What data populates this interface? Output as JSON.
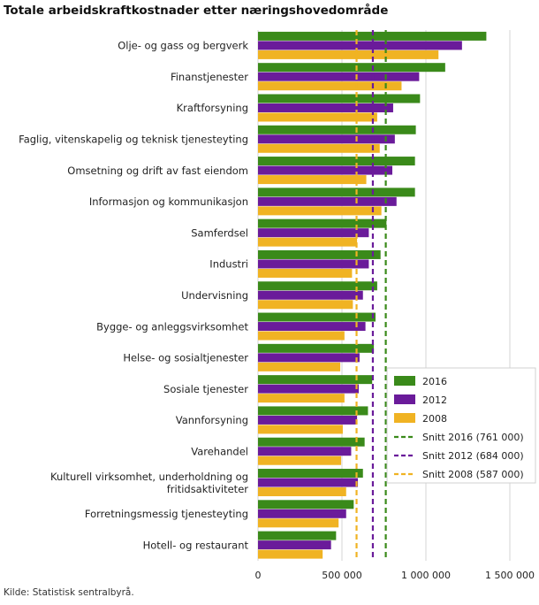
{
  "chart_data": {
    "type": "bar",
    "orientation": "horizontal",
    "title": "Totale arbeidskraftkostnader etter næringshovedområde",
    "source": "Kilde: Statistisk sentralbyrå.",
    "categories": [
      [
        "Olje- og gass og bergverk"
      ],
      [
        "Finanstjenester"
      ],
      [
        "Kraftforsyning"
      ],
      [
        "Faglig, vitenskapelig og teknisk tjenesteyting"
      ],
      [
        "Omsetning og drift av fast eiendom"
      ],
      [
        "Informasjon og kommunikasjon"
      ],
      [
        "Samferdsel"
      ],
      [
        "Industri"
      ],
      [
        "Undervisning"
      ],
      [
        "Bygge- og anleggsvirksomhet"
      ],
      [
        "Helse- og sosialtjenester"
      ],
      [
        "Sosiale tjenester"
      ],
      [
        "Vannforsyning"
      ],
      [
        "Varehandel"
      ],
      [
        "Kulturell virksomhet, underholdning og",
        "fritidsaktiviteter"
      ],
      [
        "Forretningsmessig tjenesteyting"
      ],
      [
        "Hotell- og restaurant"
      ]
    ],
    "series": [
      {
        "name": "2016",
        "color": "#3a8a1a",
        "values": [
          1360000,
          1115000,
          965000,
          940000,
          935000,
          935000,
          765000,
          730000,
          710000,
          700000,
          690000,
          680000,
          655000,
          635000,
          625000,
          570000,
          465000
        ]
      },
      {
        "name": "2012",
        "color": "#6a1b9a",
        "values": [
          1215000,
          960000,
          805000,
          815000,
          800000,
          825000,
          660000,
          660000,
          625000,
          640000,
          605000,
          600000,
          590000,
          555000,
          595000,
          525000,
          435000
        ]
      },
      {
        "name": "2008",
        "color": "#f0b323",
        "values": [
          1075000,
          855000,
          710000,
          725000,
          645000,
          735000,
          590000,
          560000,
          565000,
          515000,
          490000,
          515000,
          505000,
          495000,
          525000,
          480000,
          385000
        ]
      }
    ],
    "reference_lines": [
      {
        "name": "Snitt 2016 (761 000)",
        "value": 761000,
        "color": "#3a8a1a",
        "style": "dashed"
      },
      {
        "name": "Snitt 2012 (684 000)",
        "value": 684000,
        "color": "#6a1b9a",
        "style": "dashed"
      },
      {
        "name": "Snitt 2008 (587 000)",
        "value": 587000,
        "color": "#f0b323",
        "style": "dashed"
      }
    ],
    "xlim": [
      0,
      1500000
    ],
    "xticks": [
      0,
      500000,
      1000000,
      1500000
    ],
    "xtick_labels": [
      "0",
      "500 000",
      "1 000 000",
      "1 500 000"
    ],
    "grid": "vertical",
    "legend_position": "bottom-right"
  }
}
